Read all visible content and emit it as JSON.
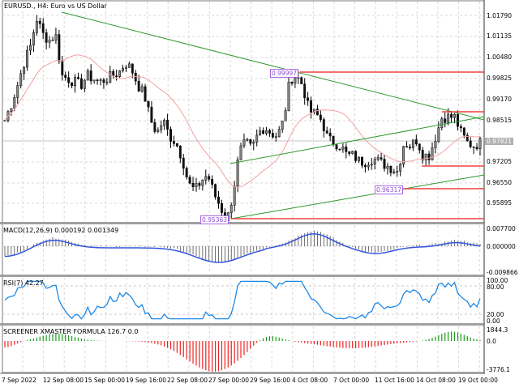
{
  "window": {
    "symbol_title": "EURUSD., H4:  Euro vs US Dollar"
  },
  "main_panel": {
    "price_axis": [
      "1.01790",
      "1.01135",
      "1.00480",
      "0.99825",
      "0.99170",
      "0.98515",
      "0.97821",
      "0.97205",
      "0.96550",
      "0.95895"
    ],
    "current_price": "0.97821",
    "price_tags": [
      {
        "label": "0.99997"
      },
      {
        "label": "0.96317"
      },
      {
        "label": "0.95363"
      }
    ]
  },
  "macd_panel": {
    "title": "MACD(12,26,9) 0.000192 0.001349",
    "axis": [
      "0.007700",
      "0.000000",
      "-0.009866"
    ]
  },
  "rsi_panel": {
    "title": "RSI(7) 42.27",
    "axis": [
      "100.00",
      "80.00",
      "20.00",
      "0.00"
    ]
  },
  "screener_panel": {
    "title": "SCREENER XMASTER FORMULA 126.7 0.0",
    "axis": [
      "1844.3",
      "0.0",
      "-3776.1"
    ]
  },
  "time_axis": [
    "7 Sep 2022",
    "12 Sep 08:00",
    "15 Sep 00:00",
    "19 Sep 16:00",
    "22 Sep 08:00",
    "27 Sep 00:00",
    "29 Sep 16:00",
    "4 Oct 08:00",
    "7 Oct 00:00",
    "11 Oct 16:00",
    "14 Oct 08:00",
    "19 Oct 00:00"
  ],
  "colors": {
    "trendline": "#2e9a2e",
    "level": "#f04040",
    "ma": "#f4a0a0",
    "macd_signal": "#3355dd",
    "rsi": "#1e88e5",
    "screener_pos": "#1a9a1a",
    "screener_neg": "#ee2222",
    "tag": "#a86ae0"
  },
  "chart_data": {
    "type": "candlestick",
    "symbol": "EURUSD.",
    "timeframe": "H4",
    "close_path": [
      0.985,
      0.99,
      0.996,
      1.003,
      1.008,
      1.017,
      1.012,
      1.01,
      1.012,
      0.999,
      0.998,
      0.997,
      0.996,
      0.999,
      0.998,
      0.997,
      0.998,
      0.999,
      1.0,
      1.003,
      1.001,
      0.996,
      0.993,
      0.985,
      0.981,
      0.985,
      0.98,
      0.978,
      0.973,
      0.965,
      0.963,
      0.966,
      0.968,
      0.962,
      0.958,
      0.953,
      0.962,
      0.975,
      0.978,
      0.976,
      0.981,
      0.983,
      0.981,
      0.98,
      0.985,
      0.998,
      0.999,
      0.996,
      0.988,
      0.987,
      0.985,
      0.979,
      0.978,
      0.977,
      0.974,
      0.974,
      0.972,
      0.972,
      0.973,
      0.972,
      0.971,
      0.97,
      0.969,
      0.978,
      0.977,
      0.979,
      0.974,
      0.974,
      0.98,
      0.986,
      0.986,
      0.986,
      0.981,
      0.978,
      0.977,
      0.978
    ],
    "levels": {
      "high": 0.99997,
      "low": 0.95363,
      "mid_low": 0.96317
    },
    "macd": {
      "main": 0.000192,
      "signal": 0.001349
    },
    "rsi": {
      "period": 7,
      "value": 42.27
    },
    "screener": {
      "value": 126.7,
      "second": 0.0
    }
  }
}
